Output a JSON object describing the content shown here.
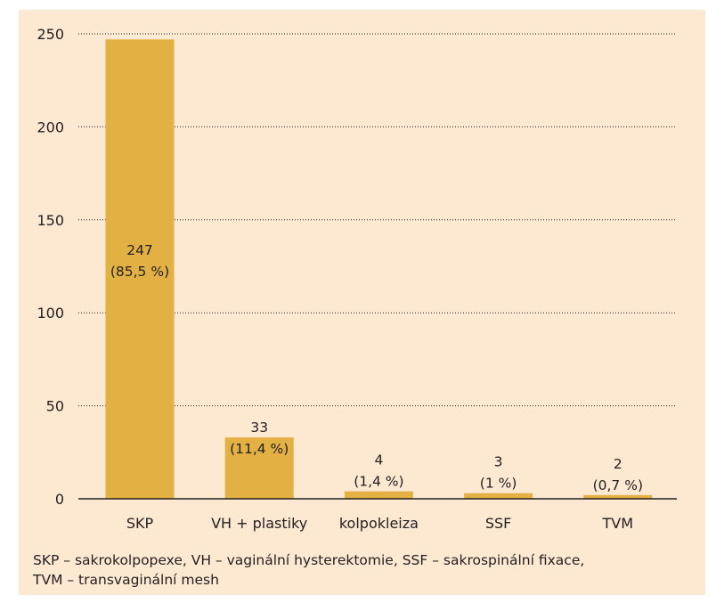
{
  "colors": {
    "panel_background": "#fde8d2",
    "bar": "#e3b044",
    "text": "#231f20",
    "axis": "#231f20"
  },
  "chart_data": {
    "type": "bar",
    "title": "",
    "xlabel": "",
    "ylabel": "",
    "categories": [
      "SKP",
      "VH + plastiky",
      "kolpokleiza",
      "SSF",
      "TVM"
    ],
    "values": [
      247,
      33,
      4,
      3,
      2
    ],
    "data_labels": [
      {
        "count": "247",
        "percent": "(85,5 %)"
      },
      {
        "count": "33",
        "percent": "(11,4 %)"
      },
      {
        "count": "4",
        "percent": "(1,4 %)"
      },
      {
        "count": "3",
        "percent": "(1 %)"
      },
      {
        "count": "2",
        "percent": "(0,7 %)"
      }
    ],
    "ylim": [
      0,
      250
    ],
    "yticks": [
      0,
      50,
      100,
      150,
      200,
      250
    ],
    "grid": "horizontal dotted",
    "legend": "none"
  },
  "footnote": {
    "line1": "SKP – sakrokolpopexe, VH – vaginální hysterektomie, SSF – sakrospinální fixace,",
    "line2": "TVM – transvaginální mesh"
  }
}
